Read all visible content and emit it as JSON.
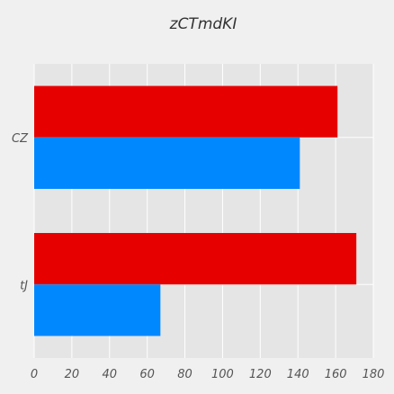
{
  "chart_data": {
    "type": "bar",
    "orientation": "horizontal",
    "title": "zCTmdKI",
    "xlabel": "",
    "ylabel": "",
    "categories": [
      "CZ",
      "tJ"
    ],
    "series": [
      {
        "values": [
          161,
          171
        ],
        "color": "#e60000"
      },
      {
        "values": [
          141,
          67
        ],
        "color": "#0088ff"
      }
    ],
    "xlim": [
      0,
      180
    ],
    "x_ticks": [
      0,
      20,
      40,
      60,
      80,
      100,
      120,
      140,
      160,
      180
    ],
    "grid": true,
    "legend": "none",
    "background": "#e5e5e5"
  }
}
